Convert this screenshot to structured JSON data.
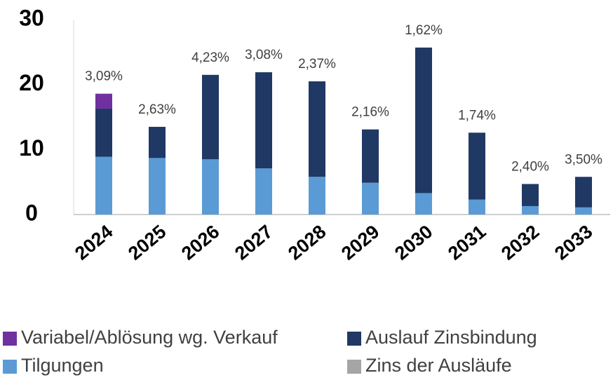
{
  "chart_data": {
    "type": "bar",
    "stacked": true,
    "categories": [
      "2024",
      "2025",
      "2026",
      "2027",
      "2028",
      "2029",
      "2030",
      "2031",
      "2032",
      "2033"
    ],
    "series": [
      {
        "name": "Tilgungen",
        "color": "#5b9bd5",
        "values": [
          8.9,
          8.7,
          8.5,
          7.1,
          5.8,
          4.9,
          3.3,
          2.3,
          1.3,
          1.1
        ]
      },
      {
        "name": "Auslauf Zinsbindung",
        "color": "#203864",
        "values": [
          7.4,
          4.8,
          13.0,
          14.8,
          14.7,
          8.2,
          22.4,
          10.3,
          3.4,
          4.7
        ]
      },
      {
        "name": "Variabel/Ablösung wg. Verkauf",
        "color": "#7030a0",
        "values": [
          2.3,
          null,
          null,
          null,
          null,
          null,
          null,
          null,
          null,
          null
        ]
      },
      {
        "name": "Zins der Ausläufe",
        "color": "#a5a5a5",
        "values": [
          3.09,
          2.63,
          4.23,
          3.08,
          2.37,
          2.16,
          1.62,
          1.74,
          2.4,
          3.5
        ],
        "value_labels": [
          "3,09%",
          "2,63%",
          "4,23%",
          "3,08%",
          "2,37%",
          "2,16%",
          "1,62%",
          "1,74%",
          "2,40%",
          "3,50%"
        ]
      }
    ],
    "ylim": [
      0,
      30
    ],
    "yticks": [
      0,
      10,
      20,
      30
    ]
  }
}
